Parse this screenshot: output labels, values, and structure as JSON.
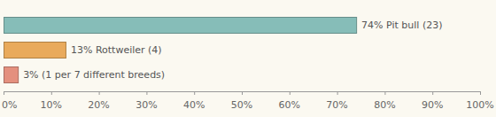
{
  "chart_data": {
    "type": "bar",
    "orientation": "horizontal",
    "categories": [
      null,
      null,
      null
    ],
    "values": [
      74,
      13,
      3
    ],
    "value_labels": [
      "74% Pit bull (23)",
      "13% Rottweiler (4)",
      "3% (1 per 7 different breeds)"
    ],
    "data_labels": true,
    "colors": [
      "#86bdb8",
      "#e9aa5c",
      "#e4907e"
    ],
    "xlim": [
      0,
      100
    ],
    "xticks": [
      {
        "value": 0,
        "label": "0%"
      },
      {
        "value": 10,
        "label": "10%"
      },
      {
        "value": 20,
        "label": "20%"
      },
      {
        "value": 30,
        "label": "30%"
      },
      {
        "value": 40,
        "label": "40%"
      },
      {
        "value": 50,
        "label": "50%"
      },
      {
        "value": 60,
        "label": "60%"
      },
      {
        "value": 70,
        "label": "70%"
      },
      {
        "value": 80,
        "label": "80%"
      },
      {
        "value": 90,
        "label": "90%"
      },
      {
        "value": 100,
        "label": "100%"
      }
    ],
    "grid": false
  }
}
